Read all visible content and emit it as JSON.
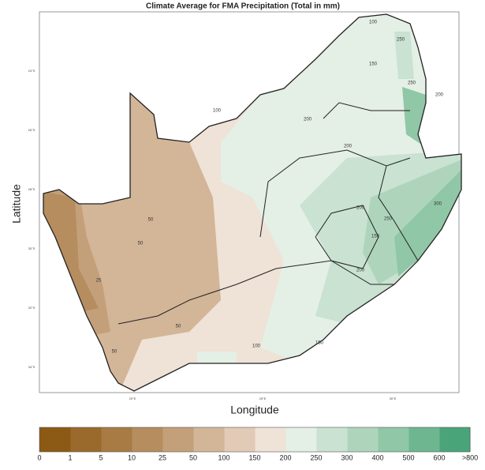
{
  "title": "Climate Average for FMA Precipitation (Total in mm)",
  "x_axis_label": "Longitude",
  "y_axis_label": "Latitude",
  "lat_ticks": [
    "24°S",
    "26°S",
    "28°S",
    "30°S",
    "32°S",
    "34°S"
  ],
  "lon_ticks": [
    "20°E",
    "25°E",
    "30°E"
  ],
  "contour_labels": [
    "25",
    "50",
    "50",
    "50",
    "50",
    "100",
    "100",
    "100",
    "150",
    "150",
    "150",
    "200",
    "200",
    "200",
    "200",
    "200",
    "250",
    "250",
    "250",
    "300"
  ],
  "colorbar": {
    "labels": [
      "0",
      "1",
      "5",
      "10",
      "25",
      "50",
      "100",
      "150",
      "200",
      "250",
      "300",
      "400",
      "500",
      "600",
      ">800"
    ],
    "colors": [
      "#8c5a14",
      "#9a6a2c",
      "#a87b44",
      "#b68d5e",
      "#c4a07a",
      "#d3b598",
      "#e2cbb6",
      "#efe2d6",
      "#e4efe6",
      "#c9e2d1",
      "#aed5bc",
      "#90c7a6",
      "#6db690",
      "#4aa47a"
    ]
  }
}
